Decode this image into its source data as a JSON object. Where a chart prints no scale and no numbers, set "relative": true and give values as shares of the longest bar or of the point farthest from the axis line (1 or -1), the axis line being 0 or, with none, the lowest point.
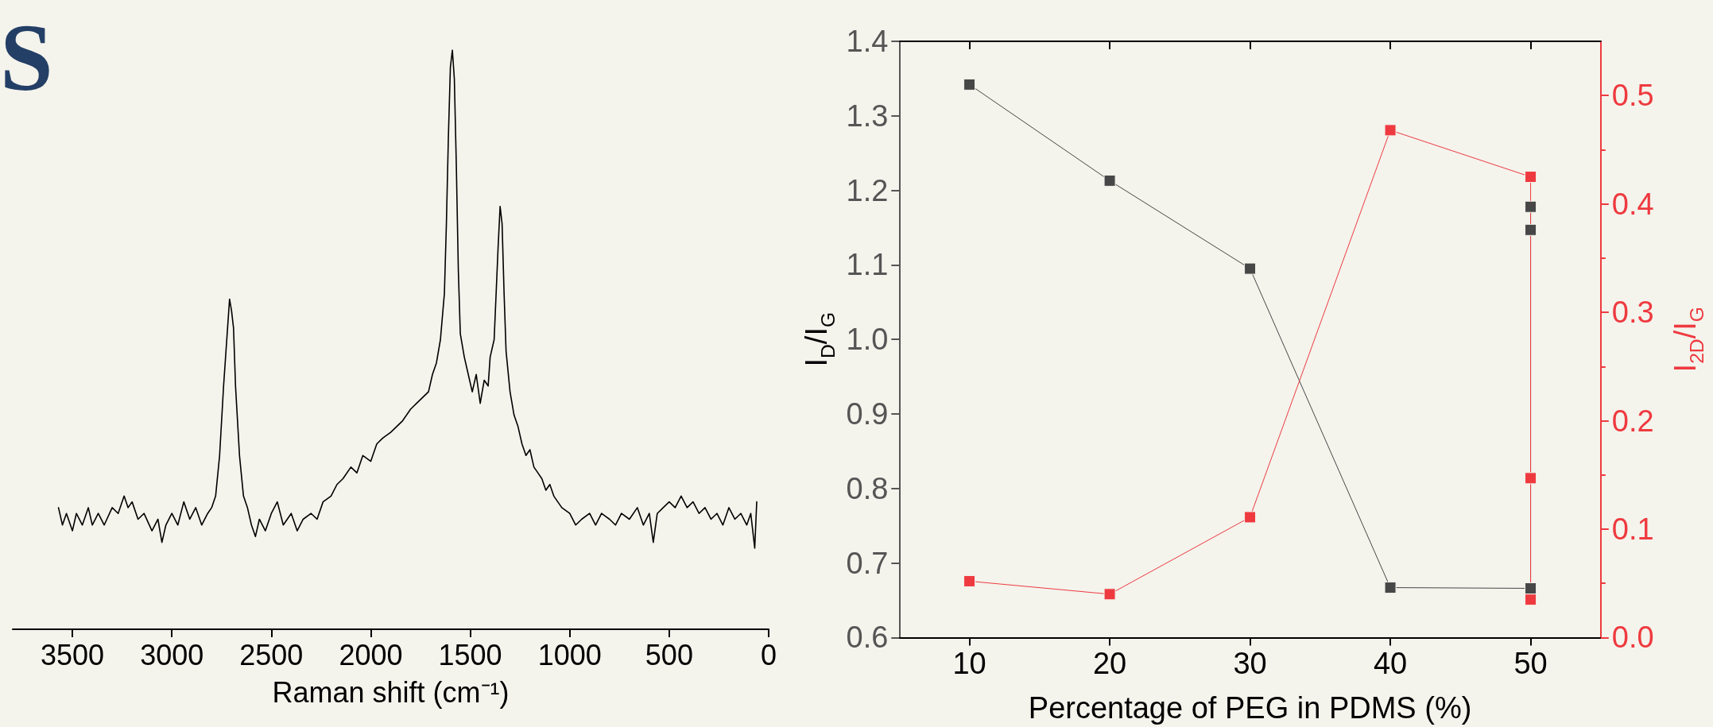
{
  "chart_data": [
    {
      "type": "line",
      "relative": true,
      "xlabel": "Raman shift (cm⁻¹)",
      "annotations": [
        "S"
      ],
      "xlim": [
        3800,
        0
      ],
      "xticks": [
        3500,
        3000,
        2500,
        2000,
        1500,
        1000,
        500,
        0
      ],
      "marker": "none",
      "line_style": "solid",
      "series": [
        {
          "color": "#000000",
          "x": [
            3570,
            3550,
            3530,
            3500,
            3480,
            3450,
            3420,
            3400,
            3370,
            3340,
            3300,
            3270,
            3240,
            3220,
            3200,
            3170,
            3140,
            3100,
            3070,
            3050,
            3030,
            3000,
            2970,
            2940,
            2910,
            2880,
            2850,
            2820,
            2800,
            2780,
            2760,
            2740,
            2720,
            2710,
            2700,
            2690,
            2680,
            2660,
            2640,
            2620,
            2600,
            2580,
            2560,
            2530,
            2500,
            2470,
            2440,
            2400,
            2370,
            2340,
            2300,
            2270,
            2240,
            2200,
            2170,
            2140,
            2100,
            2070,
            2040,
            2000,
            1970,
            1940,
            1900,
            1870,
            1840,
            1800,
            1770,
            1740,
            1710,
            1690,
            1670,
            1650,
            1630,
            1620,
            1610,
            1600,
            1590,
            1580,
            1570,
            1560,
            1550,
            1530,
            1510,
            1490,
            1470,
            1450,
            1430,
            1410,
            1400,
            1380,
            1370,
            1360,
            1350,
            1340,
            1330,
            1320,
            1300,
            1280,
            1260,
            1240,
            1220,
            1200,
            1180,
            1160,
            1140,
            1120,
            1100,
            1080,
            1060,
            1040,
            1000,
            970,
            940,
            900,
            870,
            840,
            800,
            770,
            740,
            700,
            660,
            630,
            600,
            580,
            560,
            530,
            500,
            470,
            440,
            410,
            380,
            350,
            320,
            290,
            260,
            230,
            200,
            170,
            140,
            110,
            90,
            70,
            60
          ],
          "values": [
            0.21,
            0.18,
            0.2,
            0.17,
            0.2,
            0.18,
            0.21,
            0.18,
            0.2,
            0.18,
            0.21,
            0.2,
            0.23,
            0.21,
            0.22,
            0.19,
            0.2,
            0.17,
            0.19,
            0.15,
            0.18,
            0.2,
            0.18,
            0.22,
            0.19,
            0.21,
            0.18,
            0.2,
            0.21,
            0.23,
            0.3,
            0.42,
            0.52,
            0.57,
            0.55,
            0.52,
            0.42,
            0.3,
            0.23,
            0.21,
            0.18,
            0.16,
            0.19,
            0.17,
            0.2,
            0.22,
            0.18,
            0.2,
            0.17,
            0.19,
            0.2,
            0.19,
            0.22,
            0.23,
            0.25,
            0.26,
            0.28,
            0.27,
            0.3,
            0.29,
            0.32,
            0.33,
            0.34,
            0.35,
            0.36,
            0.38,
            0.39,
            0.4,
            0.41,
            0.44,
            0.46,
            0.5,
            0.58,
            0.7,
            0.85,
            0.97,
            1,
            0.95,
            0.8,
            0.62,
            0.51,
            0.47,
            0.44,
            0.41,
            0.44,
            0.39,
            0.43,
            0.42,
            0.47,
            0.5,
            0.58,
            0.66,
            0.73,
            0.7,
            0.58,
            0.48,
            0.41,
            0.37,
            0.35,
            0.32,
            0.3,
            0.31,
            0.28,
            0.27,
            0.26,
            0.24,
            0.25,
            0.23,
            0.22,
            0.21,
            0.2,
            0.18,
            0.19,
            0.2,
            0.18,
            0.2,
            0.19,
            0.18,
            0.2,
            0.19,
            0.21,
            0.18,
            0.2,
            0.15,
            0.2,
            0.21,
            0.22,
            0.21,
            0.23,
            0.21,
            0.22,
            0.2,
            0.21,
            0.19,
            0.2,
            0.18,
            0.21,
            0.19,
            0.2,
            0.18,
            0.2,
            0.14,
            0.22
          ]
        }
      ]
    },
    {
      "type": "line",
      "xlabel": "Percentage of PEG in PDMS (%)",
      "ylabel": "I$_{D}$/I$_{G}$",
      "y2label": "I$_{2D}$/I$_{G}$",
      "xlim": [
        5,
        55
      ],
      "xticks": [
        10,
        20,
        30,
        40,
        50
      ],
      "ylim": [
        0.6,
        1.4
      ],
      "yticks": [
        0.6,
        0.7,
        0.8,
        0.9,
        {
          "value": 1,
          "label": "1.0"
        },
        1.1,
        1.2,
        1.3,
        1.4
      ],
      "y2lim": [
        0,
        0.55
      ],
      "y2ticks": [
        {
          "value": 0,
          "label": "0.0"
        },
        0.1,
        0.2,
        0.3,
        0.4,
        0.5
      ],
      "marker": "square",
      "line_style": "solid",
      "grid": false,
      "series": [
        {
          "color": "#474747",
          "x": [
            10,
            20,
            30,
            40,
            50,
            50,
            50
          ],
          "values": [
            1.342,
            1.213,
            1.095,
            0.667,
            0.666,
            1.147,
            1.178
          ]
        },
        {
          "color": "#ee3a3f",
          "axis": "y2",
          "x": [
            10,
            20,
            30,
            40,
            50,
            50,
            50
          ],
          "values": [
            0.052,
            0.04,
            0.111,
            0.468,
            0.425,
            0.147,
            0.035
          ]
        }
      ]
    }
  ]
}
